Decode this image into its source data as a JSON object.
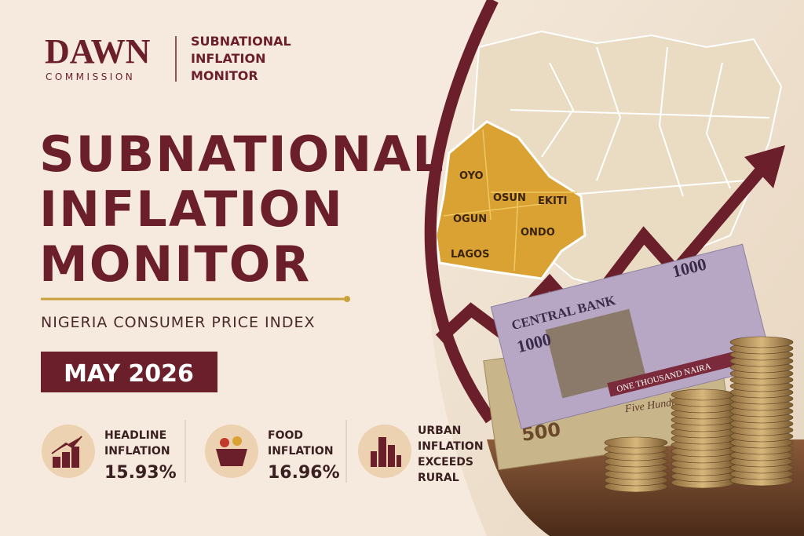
{
  "header": {
    "brand": "DAWN",
    "brand_sub": "COMMISSION",
    "product": [
      "SUBNATIONAL",
      "INFLATION",
      "MONITOR"
    ]
  },
  "title": [
    "SUBNATIONAL",
    "INFLATION",
    "MONITOR"
  ],
  "subtitle": "NIGERIA CONSUMER PRICE INDEX",
  "date": "MAY 2026",
  "stats": [
    {
      "label": [
        "HEADLINE",
        "INFLATION"
      ],
      "value": "15.93%"
    },
    {
      "label": [
        "FOOD",
        "INFLATION"
      ],
      "value": "16.96%"
    },
    {
      "label": [
        "URBAN",
        "INFLATION",
        "EXCEEDS",
        "RURAL"
      ]
    }
  ],
  "map": {
    "states": [
      "OYO",
      "OSUN",
      "EKITI",
      "OGUN",
      "ONDO",
      "LAGOS"
    ]
  },
  "banknotes": {
    "bank": "CENTRAL BANK",
    "denomination": "1000",
    "words": "ONE THOUSAND NAIRA",
    "small": "500",
    "small_words": "Five Hundred"
  }
}
